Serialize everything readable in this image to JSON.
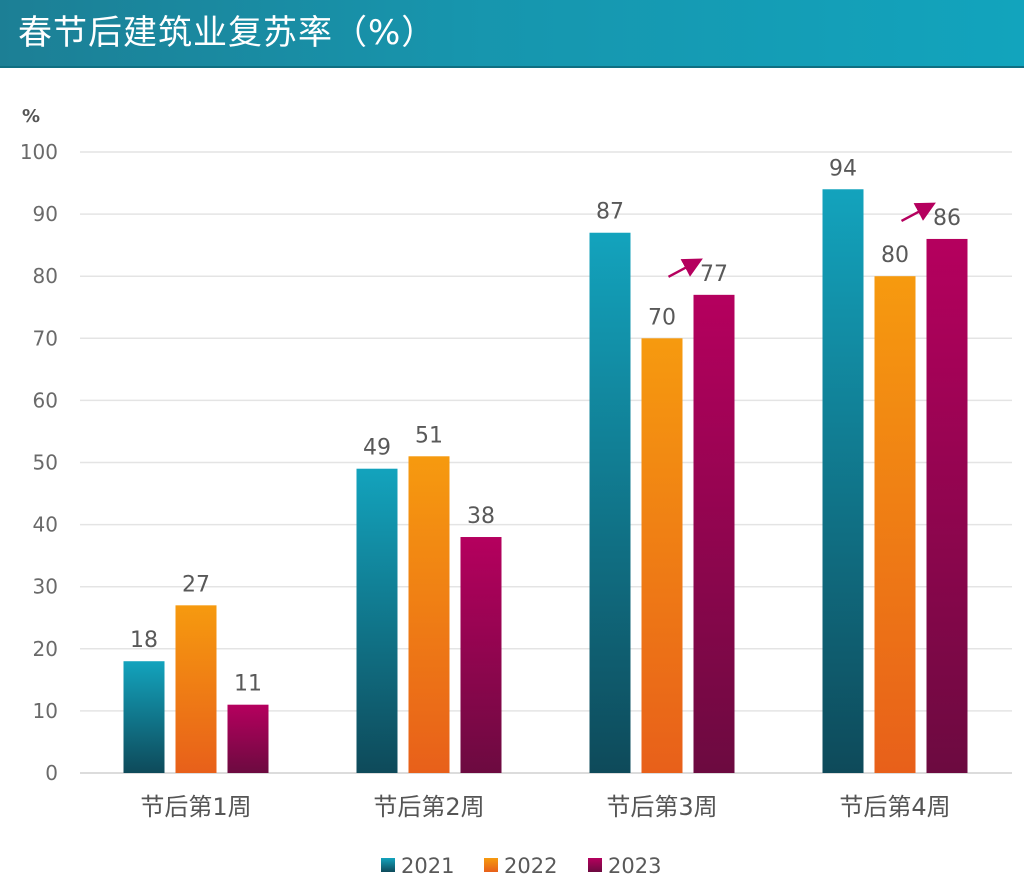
{
  "header": {
    "title": "春节后建筑业复苏率（%）"
  },
  "chart_data": {
    "type": "bar",
    "title": "春节后建筑业复苏率（%）",
    "y_unit": "%",
    "categories": [
      "节后第1周",
      "节后第2周",
      "节后第3周",
      "节后第4周"
    ],
    "series": [
      {
        "name": "2021",
        "values": [
          18,
          49,
          87,
          94
        ],
        "color_top": "#13a3bd",
        "color_bottom": "#0e4a5a"
      },
      {
        "name": "2022",
        "values": [
          27,
          51,
          70,
          80
        ],
        "color_top": "#f69a0f",
        "color_bottom": "#e8601a"
      },
      {
        "name": "2023",
        "values": [
          11,
          38,
          77,
          86
        ],
        "color_top": "#b5005e",
        "color_bottom": "#6c0a40"
      }
    ],
    "ylim": [
      0,
      100
    ],
    "yticks": [
      0,
      10,
      20,
      30,
      40,
      50,
      60,
      70,
      80,
      90,
      100
    ],
    "grid": true,
    "legend_position": "bottom",
    "annotations": [
      {
        "type": "arrow",
        "category": "节后第3周",
        "series": "2023",
        "color": "#b5005e"
      },
      {
        "type": "arrow",
        "category": "节后第4周",
        "series": "2023",
        "color": "#b5005e"
      }
    ]
  }
}
